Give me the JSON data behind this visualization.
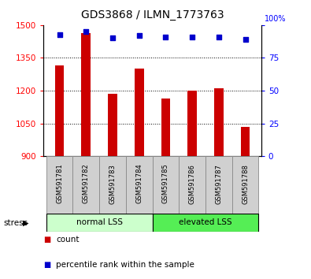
{
  "title": "GDS3868 / ILMN_1773763",
  "samples": [
    "GSM591781",
    "GSM591782",
    "GSM591783",
    "GSM591784",
    "GSM591785",
    "GSM591786",
    "GSM591787",
    "GSM591788"
  ],
  "counts": [
    1315,
    1465,
    1185,
    1300,
    1165,
    1200,
    1210,
    1035
  ],
  "percentile_ranks": [
    93,
    95,
    90,
    92,
    91,
    91,
    91,
    89
  ],
  "ylim_left": [
    900,
    1500
  ],
  "ylim_right": [
    0,
    100
  ],
  "yticks_left": [
    900,
    1050,
    1200,
    1350,
    1500
  ],
  "yticks_right": [
    0,
    25,
    50,
    75,
    100
  ],
  "bar_color": "#cc0000",
  "dot_color": "#0000cc",
  "group1_label": "normal LSS",
  "group2_label": "elevated LSS",
  "group1_color": "#ccffcc",
  "group2_color": "#55ee55",
  "stress_label": "stress",
  "legend_count_label": "count",
  "legend_pct_label": "percentile rank within the sample",
  "bar_width": 0.35,
  "label_bg_color": "#d0d0d0",
  "label_edge_color": "#888888"
}
